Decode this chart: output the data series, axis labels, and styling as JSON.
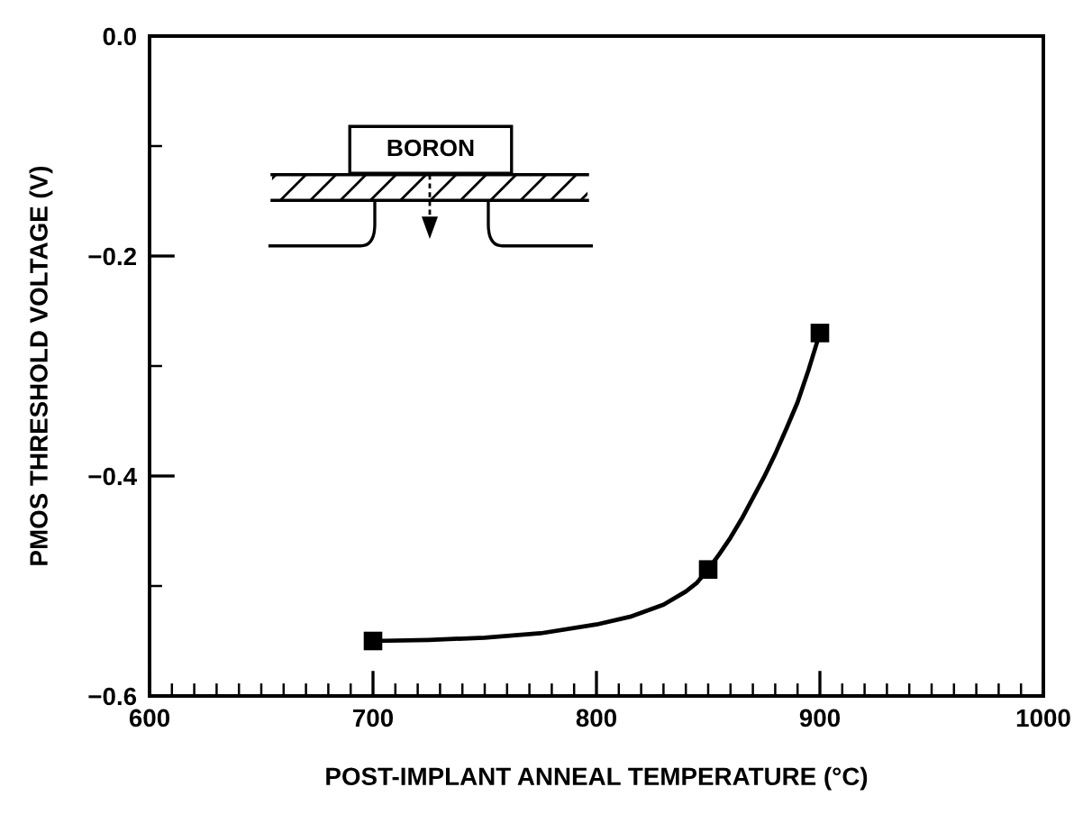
{
  "chart_data": {
    "type": "line",
    "xlabel": "POST-IMPLANT ANNEAL TEMPERATURE (°C)",
    "ylabel": "PMOS THRESHOLD VOLTAGE (V)",
    "annotations": [
      "BORON"
    ],
    "xlim": [
      600,
      1000
    ],
    "ylim": [
      -0.6,
      0.0
    ],
    "xticks": [
      600,
      {
        "value": 610,
        "label": null
      },
      {
        "value": 620,
        "label": null
      },
      {
        "value": 630,
        "label": null
      },
      {
        "value": 640,
        "label": null
      },
      {
        "value": 650,
        "label": null
      },
      {
        "value": 660,
        "label": null
      },
      {
        "value": 670,
        "label": null
      },
      {
        "value": 680,
        "label": null
      },
      {
        "value": 690,
        "label": null
      },
      700,
      {
        "value": 710,
        "label": null
      },
      {
        "value": 720,
        "label": null
      },
      {
        "value": 730,
        "label": null
      },
      {
        "value": 740,
        "label": null
      },
      {
        "value": 750,
        "label": null
      },
      {
        "value": 760,
        "label": null
      },
      {
        "value": 770,
        "label": null
      },
      {
        "value": 780,
        "label": null
      },
      {
        "value": 790,
        "label": null
      },
      800,
      {
        "value": 810,
        "label": null
      },
      {
        "value": 820,
        "label": null
      },
      {
        "value": 830,
        "label": null
      },
      {
        "value": 840,
        "label": null
      },
      {
        "value": 850,
        "label": null
      },
      {
        "value": 860,
        "label": null
      },
      {
        "value": 870,
        "label": null
      },
      {
        "value": 880,
        "label": null
      },
      {
        "value": 890,
        "label": null
      },
      900,
      {
        "value": 910,
        "label": null
      },
      {
        "value": 920,
        "label": null
      },
      {
        "value": 930,
        "label": null
      },
      {
        "value": 940,
        "label": null
      },
      {
        "value": 950,
        "label": null
      },
      {
        "value": 960,
        "label": null
      },
      {
        "value": 970,
        "label": null
      },
      {
        "value": 980,
        "label": null
      },
      {
        "value": 990,
        "label": null
      },
      1000
    ],
    "yticks": [
      {
        "value": 0.0,
        "label": "0.0"
      },
      {
        "value": -0.1,
        "label": null
      },
      {
        "value": -0.2,
        "label": "−0.2"
      },
      {
        "value": -0.3,
        "label": null
      },
      {
        "value": -0.4,
        "label": "−0.4"
      },
      {
        "value": -0.5,
        "label": null
      },
      {
        "value": -0.6,
        "label": "−0.6"
      }
    ],
    "series": [
      {
        "color": "#000000",
        "marker": "none",
        "line_style": "solid",
        "x": [
          700,
          725,
          750,
          775,
          800,
          815,
          830,
          840,
          845,
          850,
          855,
          860,
          865,
          870,
          875,
          880,
          885,
          890,
          895,
          900
        ],
        "values": [
          -0.55,
          -0.549,
          -0.547,
          -0.543,
          -0.535,
          -0.528,
          -0.517,
          -0.505,
          -0.497,
          -0.485,
          -0.471,
          -0.456,
          -0.439,
          -0.42,
          -0.401,
          -0.38,
          -0.357,
          -0.333,
          -0.303,
          -0.27
        ]
      },
      {
        "type": "scatter",
        "color": "#000000",
        "marker": "square",
        "x": [
          700,
          850,
          900
        ],
        "values": [
          -0.55,
          -0.485,
          -0.27
        ]
      }
    ]
  }
}
